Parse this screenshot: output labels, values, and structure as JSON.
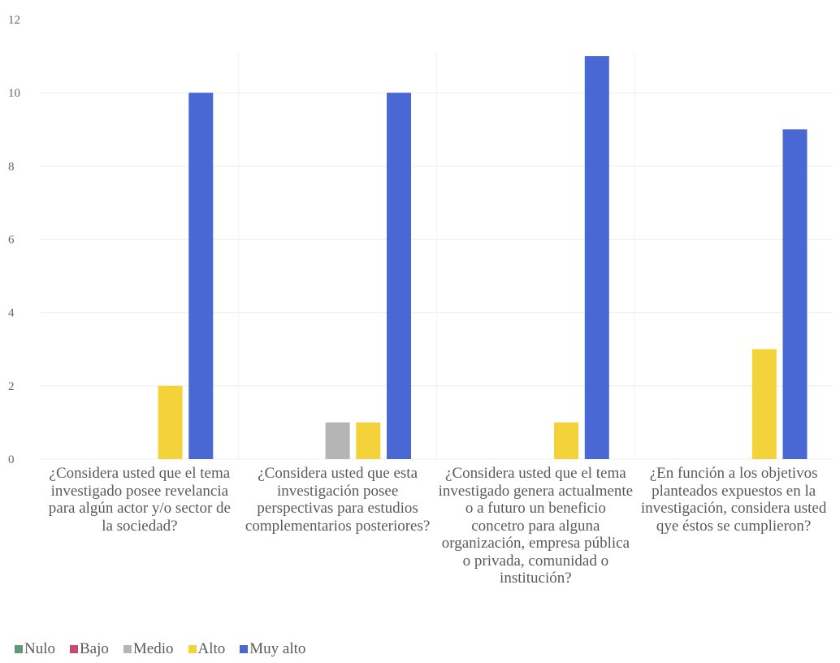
{
  "chart_data": {
    "type": "bar",
    "categories": [
      "¿Considera usted que el tema investigado posee revelancia para algún actor y/o sector de la sociedad?",
      "¿Considera usted que esta investigación posee perspectivas para estudios complementarios posteriores?",
      "¿Considera usted que el tema investigado genera actualmente o a futuro un beneficio concetro para alguna organización, empresa pública o privada, comunidad o institución?",
      "¿En función a los objetivos planteados expuestos en la investigación, considera usted qye éstos se cumplieron?"
    ],
    "series": [
      {
        "name": "Nulo",
        "color": "#5e9a78",
        "values": [
          0,
          0,
          0,
          0
        ]
      },
      {
        "name": "Bajo",
        "color": "#c84a73",
        "values": [
          0,
          0,
          0,
          0
        ]
      },
      {
        "name": "Medio",
        "color": "#b5b5b5",
        "values": [
          0,
          1,
          0,
          0
        ]
      },
      {
        "name": "Alto",
        "color": "#f4d23a",
        "values": [
          2,
          1,
          1,
          3
        ]
      },
      {
        "name": "Muy alto",
        "color": "#4a68d4",
        "values": [
          10,
          10,
          11,
          9
        ]
      }
    ],
    "yticks": [
      0,
      2,
      4,
      6,
      8,
      10,
      12
    ],
    "ylim": [
      0,
      12
    ],
    "grid": true,
    "legend_position": "bottom-left",
    "title": "",
    "xlabel": "",
    "ylabel": ""
  }
}
